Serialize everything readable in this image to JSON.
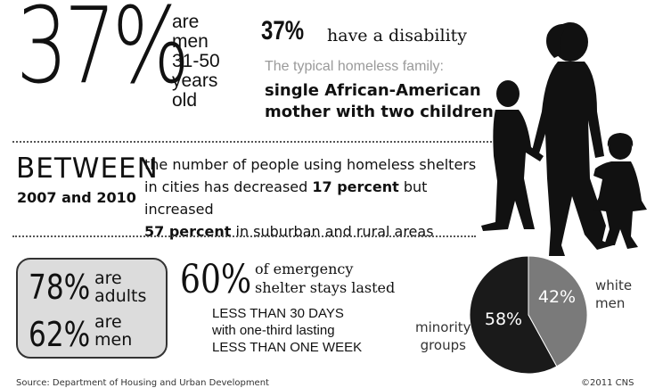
{
  "top_left": {
    "big_percent": "37%",
    "lines": [
      "are",
      "men",
      "31-50",
      "years",
      "old"
    ]
  },
  "disability": {
    "percent": "37%",
    "text": "have a disability"
  },
  "typical_family": {
    "intro": "The typical homeless family:",
    "line1": "single African-American",
    "line2": "mother with two children"
  },
  "between": {
    "word": "BETWEEN",
    "years": "2007 and 2010",
    "line1": "the number of people using homeless shelters",
    "line2_start": "in cities has decreased ",
    "line2_bold": "17 percent",
    "line2_end": " but increased",
    "line3_bold": "57 percent",
    "line3_end": " in suburban and rural areas"
  },
  "box": {
    "adults_pct": "78%",
    "adults_label1": "are",
    "adults_label2": "adults",
    "men_pct": "62%",
    "men_label1": "are",
    "men_label2": "men"
  },
  "emergency": {
    "percent": "60%",
    "line1": "of emergency",
    "line2": "shelter stays lasted",
    "line3": "LESS THAN 30 DAYS",
    "line4": "with one-third lasting",
    "line5": "LESS THAN ONE WEEK"
  },
  "pie": {
    "slices": [
      {
        "label": "42%",
        "value": 42,
        "color": "#7a7a7a"
      },
      {
        "label": "58%",
        "value": 58,
        "color": "#1a1a1a"
      }
    ],
    "white_men_label1": "white",
    "white_men_label2": "men",
    "minority_label1": "minority",
    "minority_label2": "groups"
  },
  "footer": {
    "source": "Source: Department of Housing and Urban Development",
    "credit": "©2011 CNS"
  },
  "colors": {
    "ink": "#111111",
    "gray_text": "#9a9a9a",
    "box_fill": "#dcdcdc",
    "silhouette": "#111111"
  }
}
